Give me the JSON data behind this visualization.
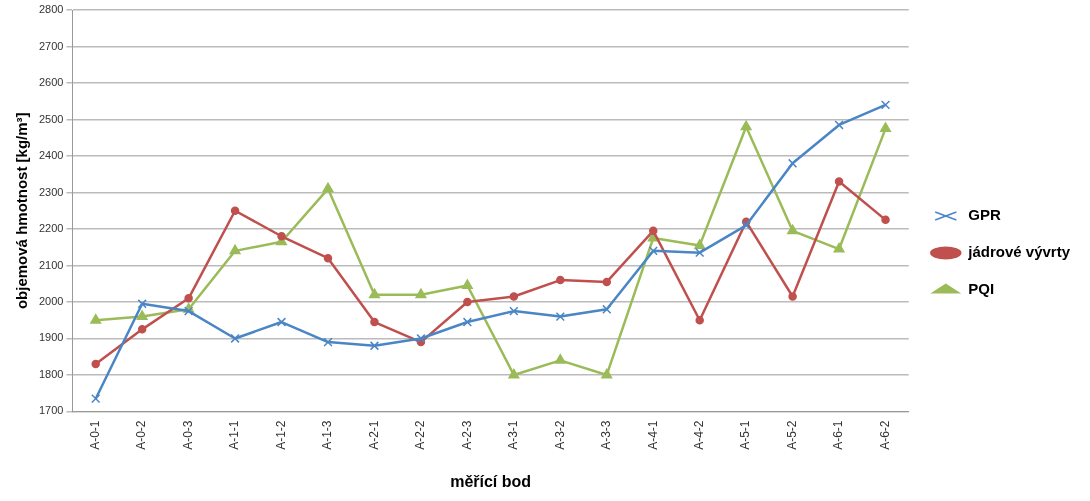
{
  "chart_data": {
    "type": "line",
    "xlabel": "měřící bod",
    "ylabel": "objemová hmotnost [kg/m³]",
    "categories": [
      "A-0-1",
      "A-0-2",
      "A-0-3",
      "A-1-1",
      "A-1-2",
      "A-1-3",
      "A-2-1",
      "A-2-2",
      "A-2-3",
      "A-3-1",
      "A-3-2",
      "A-3-3",
      "A-4-1",
      "A-4-2",
      "A-5-1",
      "A-5-2",
      "A-6-1",
      "A-6-2"
    ],
    "series": [
      {
        "name": "GPR",
        "color": "#4a86c5",
        "marker": "cross",
        "values": [
          1735,
          1995,
          1975,
          1900,
          1945,
          1890,
          1880,
          1900,
          1945,
          1975,
          1960,
          1980,
          2140,
          2135,
          2210,
          2380,
          2485,
          2540
        ]
      },
      {
        "name": "jádrové vývrty",
        "color": "#c0504d",
        "marker": "circle",
        "values": [
          1830,
          1925,
          2010,
          2250,
          2180,
          2120,
          1945,
          1890,
          2000,
          2015,
          2060,
          2055,
          2195,
          1950,
          2220,
          2015,
          2330,
          2225
        ]
      },
      {
        "name": "PQI",
        "color": "#9bbb59",
        "marker": "triangle",
        "values": [
          1950,
          1960,
          1980,
          2140,
          2165,
          2310,
          2020,
          2020,
          2045,
          1800,
          1840,
          1800,
          2175,
          2155,
          2480,
          2195,
          2145,
          2475
        ]
      }
    ],
    "ylim": [
      1700,
      2800
    ],
    "yticks": [
      1700,
      1800,
      1900,
      2000,
      2100,
      2200,
      2300,
      2400,
      2500,
      2600,
      2700,
      2800
    ],
    "grid": "y",
    "legend": "right"
  }
}
